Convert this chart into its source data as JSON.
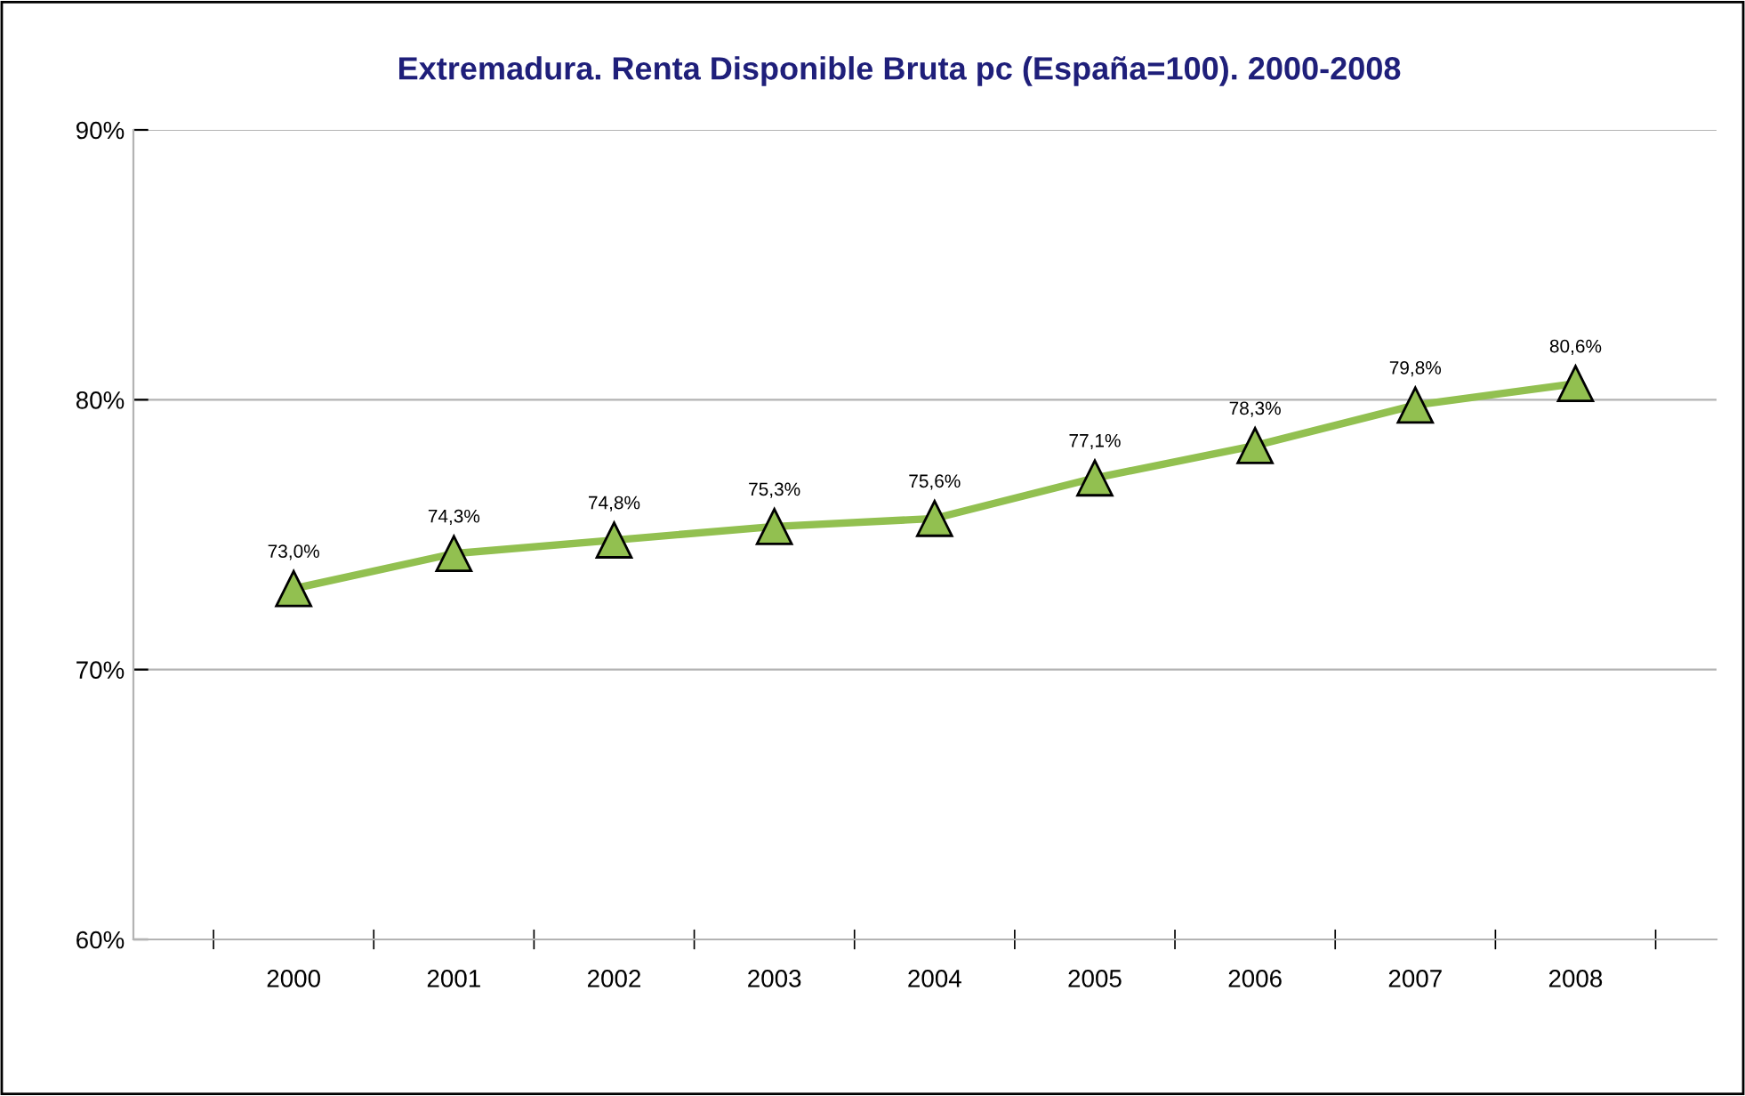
{
  "chart_data": {
    "type": "line",
    "title": "Extremadura. Renta Disponible Bruta pc (España=100). 2000-2008",
    "categories": [
      "2000",
      "2001",
      "2002",
      "2003",
      "2004",
      "2005",
      "2006",
      "2007",
      "2008"
    ],
    "series": [
      {
        "color": "#92c050",
        "values": [
          73.0,
          74.3,
          74.8,
          75.3,
          75.6,
          77.1,
          78.3,
          79.8,
          80.6
        ],
        "value_labels": [
          "73,0%",
          "74,3%",
          "74,8%",
          "75,3%",
          "75,6%",
          "77,1%",
          "78,3%",
          "79,8%",
          "80,6%"
        ]
      }
    ],
    "ylim": [
      60,
      90
    ],
    "yticks": [
      {
        "value": 60,
        "label": "60%"
      },
      {
        "value": 70,
        "label": "70%"
      },
      {
        "value": 80,
        "label": "80%"
      },
      {
        "value": 90,
        "label": "90%"
      }
    ],
    "grid": "y",
    "marker": "triangle",
    "line_style": "solid",
    "legend": false
  }
}
